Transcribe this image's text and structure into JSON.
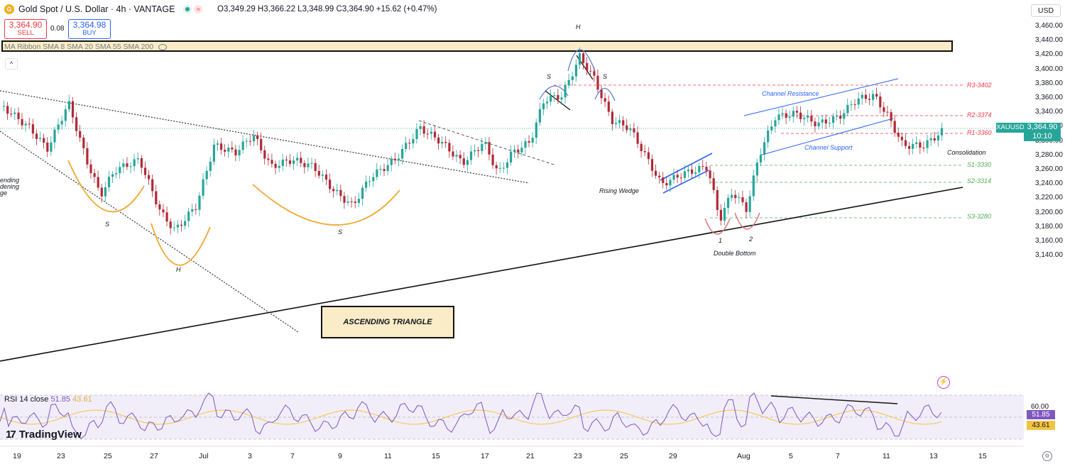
{
  "header": {
    "title": "Gold Spot / U.S. Dollar · 4h · VANTAGE",
    "ohlc": "O3,349.29  H3,366.22  L3,348.99  C3,364.90  +15.62 (+0.47%)",
    "coin_glyph": "G",
    "colors": {
      "market_open": "#26a69a",
      "market_status": "#f23645"
    }
  },
  "trade": {
    "sell_price": "3,364.90",
    "sell_label": "SELL",
    "spread": "0.08",
    "buy_price": "3,364.98",
    "buy_label": "BUY"
  },
  "indicator": {
    "ma_ribbon": "MA Ribbon SMA 8 SMA 20 SMA 55 SMA 200",
    "collapse_glyph": "^"
  },
  "price_axis": {
    "currency": "USD",
    "ticks": [
      "3,460.00",
      "3,440.00",
      "3,420.00",
      "3,400.00",
      "3,380.00",
      "3,360.00",
      "3,340.00",
      "3,320.00",
      "3,300.00",
      "3,280.00",
      "3,260.00",
      "3,240.00",
      "3,220.00",
      "3,200.00",
      "3,180.00",
      "3,160.00",
      "3,140.00"
    ],
    "symbol_tag": "XAUUSD",
    "last_price": "3,364.90",
    "countdown": "10:10"
  },
  "levels": {
    "r3": "R3-3402",
    "r2": "R2-3374",
    "r1": "R1-3360",
    "s1": "S1-3330",
    "s2": "S2-3314",
    "s3": "S3-3280"
  },
  "annotations": {
    "ascending_triangle": "ASCENDING TRIANGLE",
    "channel_resistance": "Channel Resistance",
    "channel_support": "Channel Support",
    "consolidation": "Consolidation",
    "rising_wedge": "Rising Wedge",
    "double_bottom": "Double Bottom",
    "db_1": "1",
    "db_2": "2",
    "head_1": "H",
    "head_2": "H",
    "shoulder_1": "S",
    "shoulder_2": "S",
    "shoulder_3": "S",
    "shoulder_4": "S",
    "left_partial": [
      "ending",
      "dening",
      "ge"
    ]
  },
  "rsi": {
    "label": "RSI 14 close",
    "value": "51.85",
    "ma_value": "43.61",
    "level_label": "60.00",
    "colors": {
      "rsi": "#7e57c2",
      "ma": "#f5c342",
      "band": "#ede7f6"
    }
  },
  "x_axis": [
    "19",
    "23",
    "25",
    "27",
    "Jul",
    "3",
    "7",
    "9",
    "11",
    "15",
    "17",
    "21",
    "23",
    "25",
    "29",
    "Aug",
    "5",
    "7",
    "11",
    "13",
    "15"
  ],
  "logo": {
    "text": "TradingView",
    "mark": "17"
  },
  "icons": [
    "settings-icon",
    "flash-icon",
    "coin-icon"
  ]
}
